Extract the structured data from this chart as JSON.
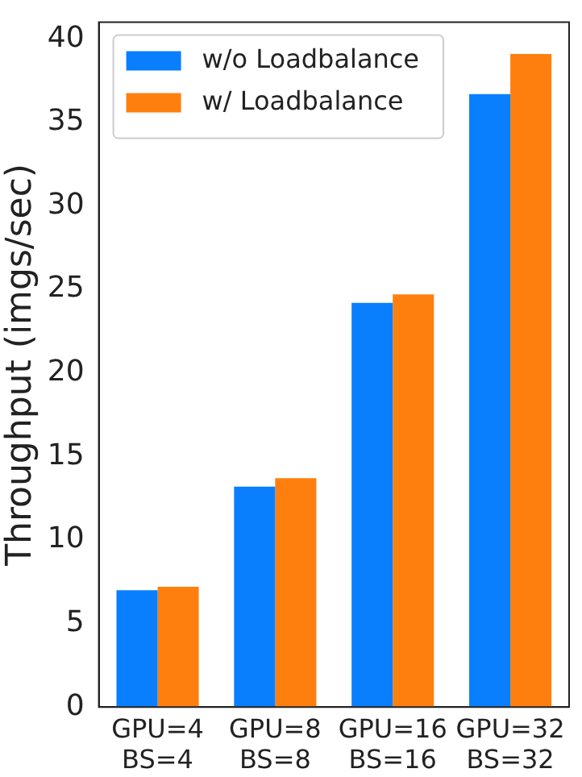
{
  "chart_data": {
    "type": "bar",
    "ylabel": "Throughput (imgs/sec)",
    "categories": [
      "GPU=4\nBS=4",
      "GPU=8\nBS=8",
      "GPU=16\nBS=16",
      "GPU=32\nBS=32"
    ],
    "series": [
      {
        "name": "w/o Loadbalance",
        "color": "#0a7ffe",
        "values": [
          7.0,
          13.2,
          24.2,
          36.7
        ]
      },
      {
        "name": "w/ Loadbalance",
        "color": "#fe7f0e",
        "values": [
          7.2,
          13.7,
          24.7,
          39.1
        ]
      }
    ],
    "ylim": [
      0,
      41
    ],
    "yticks": [
      0,
      5,
      10,
      15,
      20,
      25,
      30,
      35,
      40
    ],
    "grid": false,
    "legend": "top left"
  }
}
